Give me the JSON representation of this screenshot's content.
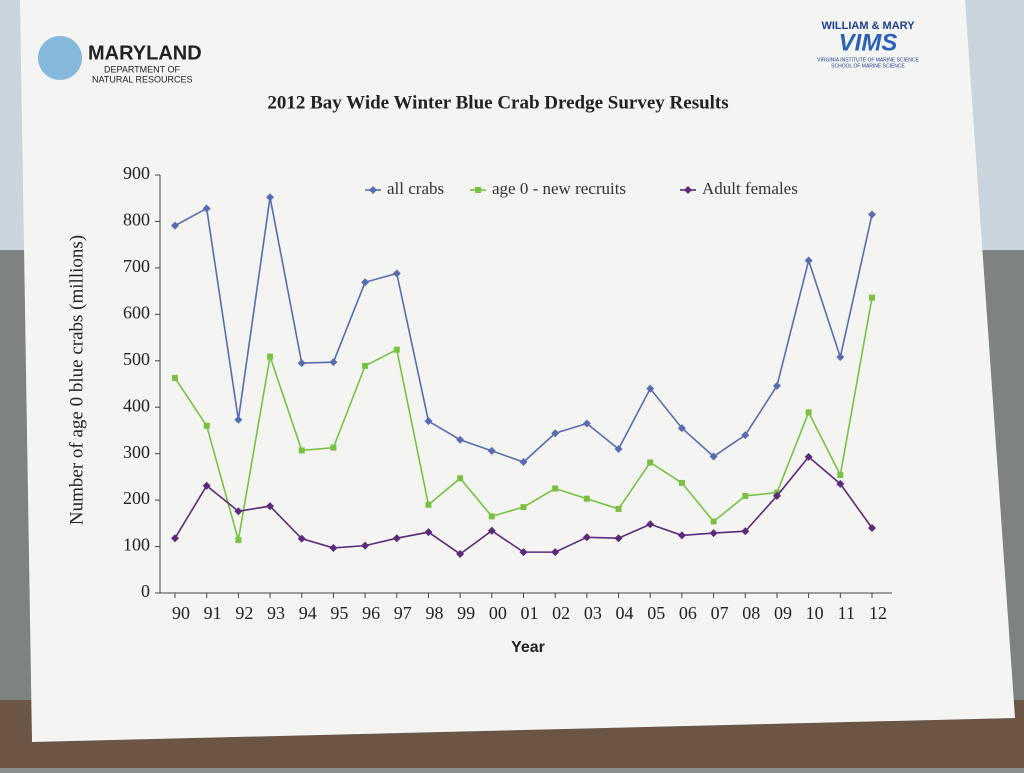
{
  "header": {
    "left_logo": [
      "MARYLAND",
      "DEPARTMENT OF",
      "NATURAL RESOURCES"
    ],
    "right_logo": [
      "WILLIAM & MARY",
      "VIMS",
      "VIRGINIA INSTITUTE OF MARINE SCIENCE",
      "SCHOOL OF MARINE SCIENCE"
    ]
  },
  "chart_data": {
    "type": "line",
    "title": "2012 Bay Wide Winter Blue Crab Dredge Survey Results",
    "x_label": "Year",
    "y_label": "Number of  age 0 blue crabs (millions)",
    "categories": [
      "90",
      "91",
      "92",
      "93",
      "94",
      "95",
      "96",
      "97",
      "98",
      "99",
      "00",
      "01",
      "02",
      "03",
      "04",
      "05",
      "06",
      "07",
      "08",
      "09",
      "10",
      "11",
      "12"
    ],
    "ylim": [
      0,
      900
    ],
    "yticks": [
      0,
      100,
      200,
      300,
      400,
      500,
      600,
      700,
      800,
      900
    ],
    "grid": false,
    "legend": "top",
    "series": [
      {
        "name": "all crabs",
        "color": "#5a6cb0",
        "marker": "diamond",
        "values": [
          791,
          828,
          373,
          852,
          495,
          497,
          669,
          688,
          370,
          330,
          306,
          282,
          344,
          365,
          310,
          440,
          355,
          294,
          340,
          446,
          716,
          508,
          815
        ]
      },
      {
        "name": "age 0 - new recruits",
        "color": "#7ac143",
        "marker": "square",
        "values": [
          463,
          360,
          114,
          509,
          307,
          313,
          489,
          524,
          190,
          247,
          165,
          185,
          225,
          203,
          181,
          281,
          237,
          154,
          209,
          216,
          389,
          254,
          636
        ]
      },
      {
        "name": "Adult females",
        "color": "#5b2a7a",
        "marker": "diamond",
        "values": [
          118,
          231,
          176,
          187,
          117,
          97,
          102,
          118,
          131,
          84,
          134,
          88,
          88,
          120,
          118,
          148,
          124,
          129,
          133,
          209,
          293,
          235,
          140
        ]
      }
    ]
  }
}
